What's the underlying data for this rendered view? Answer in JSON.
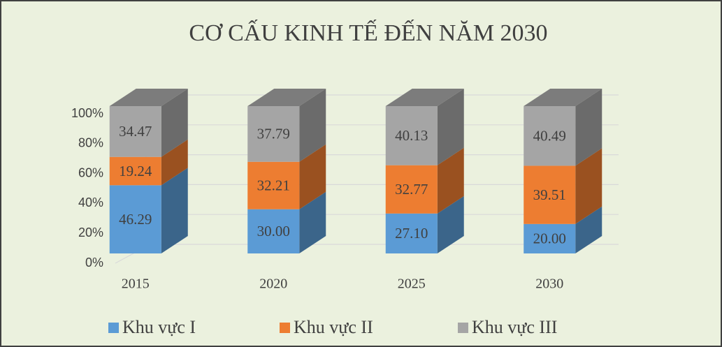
{
  "chart_data": {
    "type": "bar3d_stacked",
    "title": "CƠ CẤU KINH TẾ ĐẾN NĂM 2030",
    "categories": [
      "2015",
      "2020",
      "2025",
      "2030"
    ],
    "series": [
      {
        "name": "Khu vực I",
        "color": "#5b9bd5",
        "values": [
          46.29,
          30,
          27.1,
          20
        ],
        "value_labels": [
          "46.29",
          "30.00",
          "27.10",
          "20.00"
        ]
      },
      {
        "name": "Khu vực II",
        "color": "#ed7d31",
        "values": [
          19.24,
          32.21,
          32.77,
          39.51
        ],
        "value_labels": [
          "19.24",
          "32.21",
          "32.77",
          "39.51"
        ]
      },
      {
        "name": "Khu vực III",
        "color": "#a5a5a5",
        "values": [
          34.47,
          37.79,
          40.13,
          40.49
        ],
        "value_labels": [
          "34.47",
          "37.79",
          "40.13",
          "40.49"
        ]
      }
    ],
    "ylim": [
      0,
      100
    ],
    "yticks": [
      {
        "value": 0,
        "label": "0%"
      },
      {
        "value": 20,
        "label": "20%"
      },
      {
        "value": 40,
        "label": "40%"
      },
      {
        "value": 60,
        "label": "60%"
      },
      {
        "value": 80,
        "label": "80%"
      },
      {
        "value": 100,
        "label": "100%"
      }
    ],
    "grid": true,
    "legend": "bottom"
  }
}
